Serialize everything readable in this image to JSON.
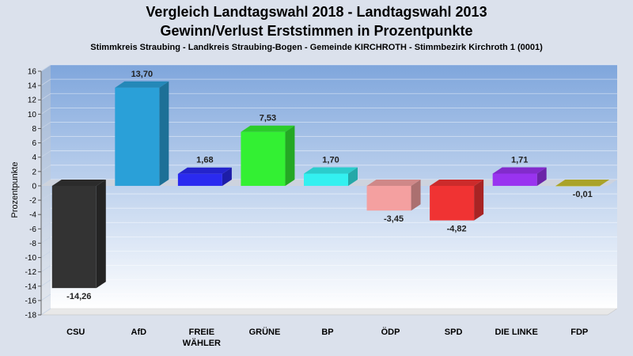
{
  "chart_data": {
    "type": "bar",
    "title": "Vergleich Landtagswahl 2018 - Landtagswahl 2013",
    "title2": "Gewinn/Verlust Erststimmen in Prozentpunkte",
    "subtitle": "Stimmkreis Straubing - Landkreis Straubing-Bogen - Gemeinde KIRCHROTH - Stimmbezirk Kirchroth 1 (0001)",
    "ylabel": "Prozentpunkte",
    "xlabel": "",
    "ylim": [
      -18,
      16
    ],
    "yticks": [
      16,
      14,
      12,
      10,
      8,
      6,
      4,
      2,
      0,
      -2,
      -4,
      -6,
      -8,
      -10,
      -12,
      -14,
      -16,
      -18
    ],
    "grid": true,
    "categories": [
      "CSU",
      "AfD",
      "FREIE WÄHLER",
      "GRÜNE",
      "BP",
      "ÖDP",
      "SPD",
      "DIE LINKE",
      "FDP"
    ],
    "category_lines": [
      [
        "CSU"
      ],
      [
        "AfD"
      ],
      [
        "FREIE",
        "WÄHLER"
      ],
      [
        "GRÜNE"
      ],
      [
        "BP"
      ],
      [
        "ÖDP"
      ],
      [
        "SPD"
      ],
      [
        "DIE LINKE"
      ],
      [
        "FDP"
      ]
    ],
    "values": [
      -14.26,
      13.7,
      1.68,
      7.53,
      1.7,
      -3.45,
      -4.82,
      1.71,
      -0.01
    ],
    "value_labels": [
      "-14,26",
      "13,70",
      "1,68",
      "7,53",
      "1,70",
      "-3,45",
      "-4,82",
      "1,71",
      "-0,01"
    ],
    "colors": [
      "#333333",
      "#2aa0d8",
      "#2a2af0",
      "#33f033",
      "#33f0f0",
      "#f4a0a0",
      "#f03333",
      "#9933f0",
      "#c8c030"
    ]
  }
}
